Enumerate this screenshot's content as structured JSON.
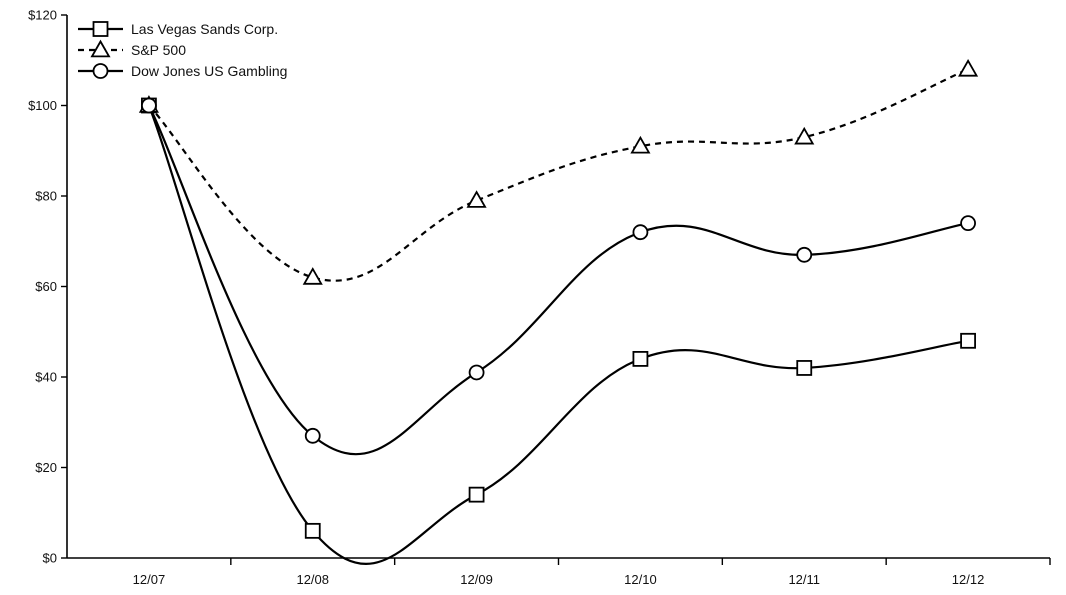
{
  "chart_data": {
    "type": "line",
    "title": "",
    "xlabel": "",
    "ylabel": "",
    "categories": [
      "12/07",
      "12/08",
      "12/09",
      "12/10",
      "12/11",
      "12/12"
    ],
    "ylim": [
      0,
      120
    ],
    "yticks": [
      0,
      20,
      40,
      60,
      80,
      100,
      120
    ],
    "ytick_labels": [
      "$0",
      "$20",
      "$40",
      "$60",
      "$80",
      "$100",
      "$120"
    ],
    "grid": false,
    "legend_position": "top-left",
    "series": [
      {
        "name": "Las Vegas Sands Corp.",
        "marker": "square",
        "line_style": "solid",
        "values": [
          100,
          6,
          14,
          44,
          42,
          48
        ]
      },
      {
        "name": "S&P 500",
        "marker": "triangle",
        "line_style": "dashed",
        "values": [
          100,
          62,
          79,
          91,
          93,
          108
        ]
      },
      {
        "name": "Dow Jones US Gambling",
        "marker": "circle",
        "line_style": "solid",
        "values": [
          100,
          27,
          41,
          72,
          67,
          74
        ]
      }
    ]
  }
}
